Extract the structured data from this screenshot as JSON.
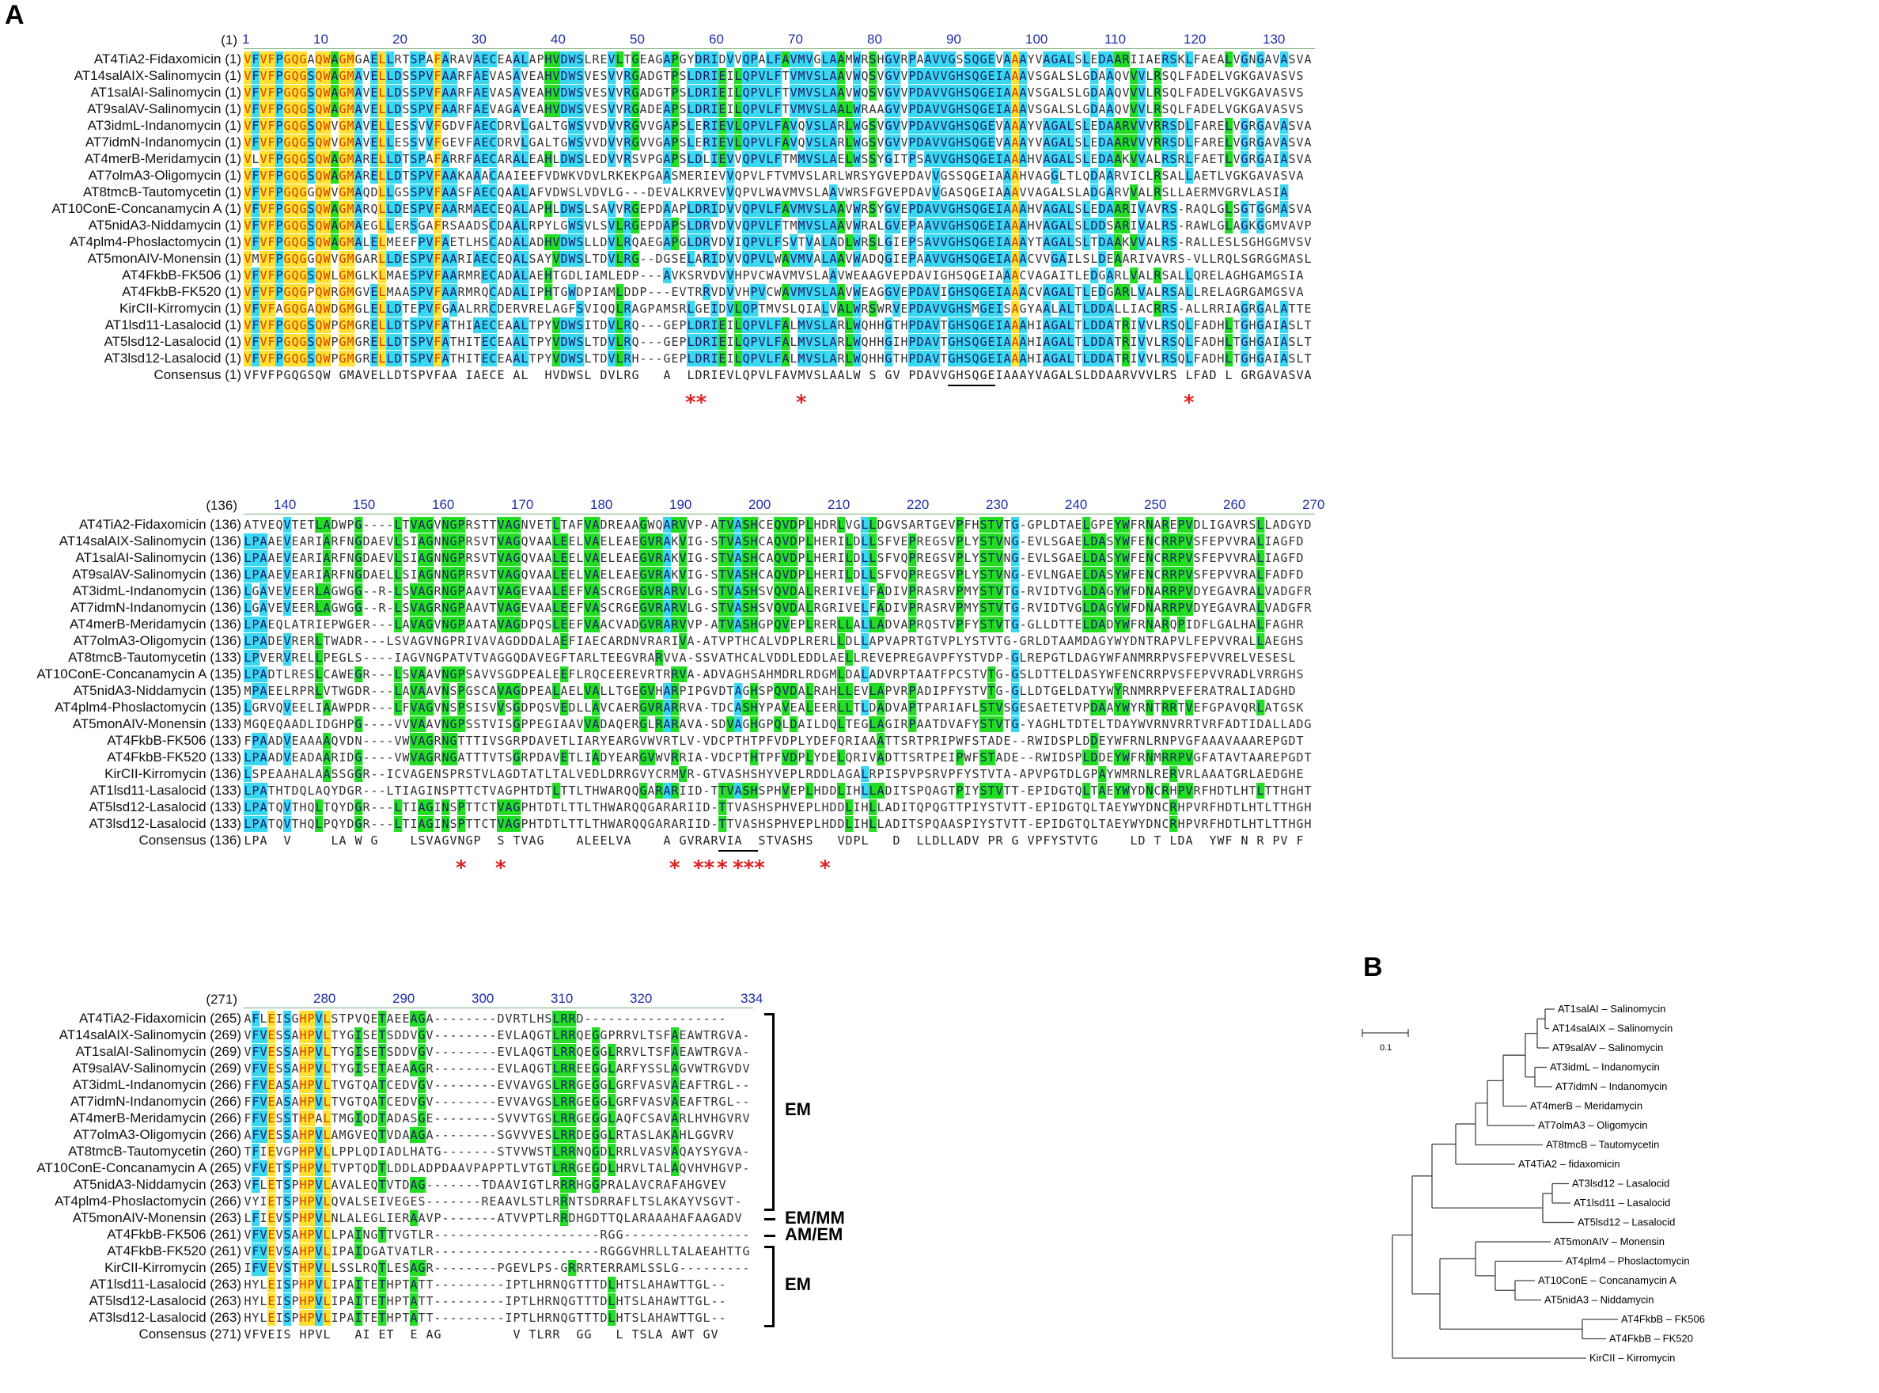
{
  "panels": {
    "a": "A",
    "b": "B"
  },
  "colors": {
    "identical": "#ffe033",
    "conserved": "#3ad8f0",
    "similar": "#22dd22",
    "highlight_text": "#d43c00",
    "ruler_text": "#1f2fa8",
    "star": "#e02020"
  },
  "block1": {
    "header_pos": "(1)",
    "ruler": [
      "1",
      "10",
      "20",
      "30",
      "40",
      "50",
      "60",
      "70",
      "80",
      "90",
      "100",
      "110",
      "120",
      "130"
    ],
    "rows": [
      {
        "name": "AT4TiA2-Fidaxomicin",
        "pos": "(1)",
        "seq": "VFVFPGQGAQWAGMGAELLRTSPAFARAVAECEAALAPHVDWSLREVLTGEAGAPGYDRIDVVQPALFAVMVGLAAMWRSHGVRPAAVVGSSQGEVAAAYVAGALSLEDAARIIAERSKLFAEALVGNGAVASVA"
      },
      {
        "name": "AT14salAIX-Salinomycin",
        "pos": "(1)",
        "seq": "VFVFPGQGSQWAGMAVELLDSSPVFAARFAEVASAVEAHVDWSVESVVRGADGTPSLDRIEILQPVLFTVMVSLAAVWQSVGVVPDAVVGHSQGEIAAAVSGALSLGDAAQVVVLRSQLFADELVGKGAVASVS"
      },
      {
        "name": "AT1salAI-Salinomycin",
        "pos": "(1)",
        "seq": "VFVFPGQGSQWAGMAVELLDSSPVFAARFAEVASAVEAHVDWSVESVVRGADGTPSLDRIEILQPVLFTVMVSLAAVWQSVGVVPDAVVGHSQGEIAAAVSGALSLGDAAQVVVLRSQLFADELVGKGAVASVS"
      },
      {
        "name": "AT9salAV-Salinomycin",
        "pos": "(1)",
        "seq": "VFVFPGQGSQWAGMAVELLDSSPVFAARFAEVAGAVEAHVDWSVESVVRGADEAPSLDRIEILQPVLFTVMVSLAALWRAAGVVPDAVVGHSQGEIAAAVSGALSLGDAAQVVVLRSQLFADELVGKGAVASVS"
      },
      {
        "name": "AT3idmL-Indanomycin",
        "pos": "(1)",
        "seq": "VFVFPGQGSQWVGMAVELLESSVVFGDVFAECDRVLGALTGWSVVDVVRGVVGAPSLERIEVLQPVLFAVQVSLARLWGSVGVVPDAVVGHSQGEVAAAYVAGALSLEDAARVVVRRSDLFARELVGRGAVASVA"
      },
      {
        "name": "AT7idmN-Indanomycin",
        "pos": "(1)",
        "seq": "VFVFPGQGSQWVGMAVELLESSVVFGEVFAECDRVLGALTGWSVVDVVRGVVGAPSLERIEVLQPVLFAVQVSLARLWGSVGVVPDAVVGHSQGEVAAAYVAGALSLEDAARVVVRRSDLFARELVGRGAVASVA"
      },
      {
        "name": "AT4merB-Meridamycin",
        "pos": "(1)",
        "seq": "VLVFPGQGSQWAGMARELLDTSPAFARRFAECARALEAHLDWSLEDVVRSVPGAPSLDLIEVVQPVLFTMMVSLAELWSSYGITPSAVVGHSQGEIAAAHVAGALSLEDAAKVVALRSRLFAETLVGRGAIASVA"
      },
      {
        "name": "AT7olmA3-Oligomycin",
        "pos": "(1)",
        "seq": "VFVFPGQGSQWAGMARELLDTSPVFAAKAAACAAIEEFVDWKVDVLRKEKPGAASMERIEVVQPVLFTVMVSLARLWRSYGVEPDAVVGSSQGEIAAAHVAGGLTLQDAARVICLRSALLAETLVGKGAVASVA"
      },
      {
        "name": "AT8tmcB-Tautomycetin",
        "pos": "(1)",
        "seq": "VFVFPGQGGQWVGMAQDLLGSSPVFAASFAECQAALAFVDWSLVDVLG---DEVALKRVEVVQPVLWAVMVSLAAVWRSFGVEPDAVVGASQGEIAAAVVAGALSLADGARVVALRSLLAERMVGRVLASIA"
      },
      {
        "name": "AT10ConE-Concanamycin A",
        "pos": "(1)",
        "seq": "VFVFPGQGSQWAGMARQLLDESPVFAARMAECEQALAPHLDWSLSAVVRGEPDAAPLDRIDVVQPVLFAVMVSLAAVWRSYGVEPDAVVGHSQGEIAAAHVAGALSLEDAARIVAVRS-RAQLGLSGTGGMASVA"
      },
      {
        "name": "AT5nidA3-Niddamycin",
        "pos": "(1)",
        "seq": "VFVFPGQGSQWAGMAEGLLERSGAFRSAADSCDAALRPYLGWSVLSVLRGEPDAPSLDRVDVVQPVLFTMMVSLAAVWRALGVEPAAVVGHSQGEIAAAHVAGALSLDDSARIVALRS-RAWLGLAGKGGMVAVP"
      },
      {
        "name": "AT4plm4-Phoslactomycin",
        "pos": "(1)",
        "seq": "VFVFPGQGSQWAGMALELMEEFPVFAETLHSCADALADHVDWSLLDVLRQAEGAPGLDRVDVIQPVLFSVTVALADLWRSLGIEPSAVVGHSQGEIAAAYTAGALSLTDAAKVVALRS-RALLESLSGHGGMVSVP"
      },
      {
        "name": "AT5monAIV-Monensin",
        "pos": "(1)",
        "seq": "VMVFPGQGGQWVGMGARLLDESPVFAARIAECEQALSAYVDWSLTDVLRG--DGSELARIDVVQPVLWAVMVALAAVWADQGIEPAAVVGHSQGEIAAACVVGAILSLDEAARIVAVRS-VLLRQLSGRGGMASLG"
      },
      {
        "name": "AT4FkbB-FK506",
        "pos": "(1)",
        "seq": "VFVFPGQGSQWLGMGLKLMAESPVFAARMRECADALAEHTGDLIAMLEDP---AVKSRVDVVHPVCWAVMVSLAAVWEAAGVEPDAVIGHSQGEIAAACVAGAITLEDGARLVALRSALLQRELAGHGAMGSIA"
      },
      {
        "name": "AT4FkbB-FK520",
        "pos": "(1)",
        "seq": "VFVFPGQGPQWRGMGVELMAASPVFAARMRQCADALIPHTGWDPIAMLDDP---EVTRRVDVVHPVCWAVMVSLAAVWEAGGVEPDAVIGHSQGEIAAACVAGALTLEDGARLVALRSALLRELAGRGAMGSVA"
      },
      {
        "name": "KirCII-Kirromycin",
        "pos": "(1)",
        "seq": "VFVFAGQGAQWDGMGLELLDTEPVFGAALRRCDERVRELAGFSVIQQLRAGPAMSRLGEIDVLQPTMVSLQIALVALWRSWRVEPDAVVGHSMGEISAGYAALALTLDDALLIACRRS-ALLRRIAGRGALATTE"
      },
      {
        "name": "AT1lsd11-Lasalocid",
        "pos": "(1)",
        "seq": "VFVFPGQGSQWPGMGRELLDTSPVFATHIAECEAALTPYVDWSITDVLRQ---GEPLDRIEILQPVLFALMVSLARLWQHHGTHPDAVTGHSQGEIAAAHIAGALTLDDATRIVVLRSQLFADHLTGHGAIASLT"
      },
      {
        "name": "AT5lsd12-Lasalocid",
        "pos": "(1)",
        "seq": "VFVFPGQGSQWPGMGRELLDTSPVFATHITECEAALTPYVDWSLTDVLRQ---GEPLDRIEILQPVLFALMVSLARLWQHHGIHPDAVTGHSQGEIAAAHIAGALTLDDATRIVVLRSQLFADHLTGHGAIASLT"
      },
      {
        "name": "AT3lsd12-Lasalocid",
        "pos": "(1)",
        "seq": "VFVFPGQGSQWPGMGRELLDTSPVFATHITECEAALTPYVDWSLTDVLRH---GEPLDRIEILQPVLFALMVSLARLWQHHGTHPDAVTGHSQGEIAAAHIAGALTLDDATRIVVLRSQLFADHLTGHGAIASLT"
      }
    ],
    "consensus_name": "Consensus",
    "consensus_pos": "(1)",
    "consensus": "VFVFPGQGSQW GMAVELLDTSPVFAA IAECE AL  HVDWSL DVLRG   A  LDRIEVLQPVLFAVMVSLAALW S GV PDAVVGHSQGEIAAAYVAGALSLDDAARVVVLRS LFAD L GRGAVASVA",
    "stars": [
      {
        "col": 57,
        "t": "**"
      },
      {
        "col": 71,
        "t": "*"
      },
      {
        "col": 120,
        "t": "*"
      }
    ],
    "underline": [
      90,
      96
    ]
  },
  "block2": {
    "header_pos": "(136)",
    "ruler": [
      "140",
      "150",
      "160",
      "170",
      "180",
      "190",
      "200",
      "210",
      "220",
      "230",
      "240",
      "250",
      "260",
      "270"
    ],
    "rows": [
      {
        "name": "AT4TiA2-Fidaxomicin",
        "pos": "(136)",
        "seq": "ATVEQVTETLADWPG----LTVAGVNGPRSTTVAGNVETLTAFVADREAAGWQARVVP-ATVASHCEQVDPLHDRLVGLLDGVSARTGEVPFHSTVTG-GPLDTAELGPEYWFRNAREPVDLIGAVRSLLADGYD"
      },
      {
        "name": "AT14salAIX-Salinomycin",
        "pos": "(136)",
        "seq": "LPAAEVEARIARFNGDAEVLSIAGNNGPRSVTVAGQVAALEELVAELEAEGVRAKVIG-STVASHCAQVDPLHERILDLLSFVEPREGSVPLYSTVNG-EVLSGAELDASYWFENCRRPVSFEPVVRALIAGFD"
      },
      {
        "name": "AT1salAI-Salinomycin",
        "pos": "(136)",
        "seq": "LPAAEVEARIARFNGDAEVLSIAGNNGPRSVTVAGQVAALEELVAELEAEGVRAKVIG-STVASHCAQVDPLHERILDLLSFVQPREGSVPLYSTVNG-EVLSGAELDASYWFENCRRPVSFEPVVRALIAGFD"
      },
      {
        "name": "AT9salAV-Salinomycin",
        "pos": "(136)",
        "seq": "LPAAEVEARIARFNGDAELLSIAGNNGPRSVTVAGQVAALEELVAELEAEGVRAKVIG-STVASHCAQVDPLHERILDLLSFVQPREGSVPLYSTVNG-EVLNGAELDASYWFENCRRPVSFEPVVRALFADFD"
      },
      {
        "name": "AT3idmL-Indanomycin",
        "pos": "(136)",
        "seq": "LGAVEVEERLAGWGG--R-LSVAGRNGPAAVTVAGEVAALEEFVASCRGEGVRARVLG-STVASHSVQVDALRERIVELFADIVPRASRVPMYSTVTG-RVIDTVGLDAGYWFDNARRPVDYEGAVRALVADGFR"
      },
      {
        "name": "AT7idmN-Indanomycin",
        "pos": "(136)",
        "seq": "LGAVEVEERLAGWGG--R-LSVAGRNGPAAVTVAGEVAALEEFVASCRGEGVRARVLG-STVASHSVQVDALRGRIVELFADIVPRASRVPMYSTVTG-RVIDTVGLDAGYWFDNARRPVDYEGAVRALVADGFR"
      },
      {
        "name": "AT4merB-Meridamycin",
        "pos": "(136)",
        "seq": "LPAEQLATRIEPWGER---LAVAGVNGPAATAVAGDPQSLEEFVAACVADGVRARVVP-ATVASHGPQVEPLRERLLALLADVAPRQSTVPFYSTVTG-GLLDTTELDADYWFRNARQPIDFLGALHALFAGHR"
      },
      {
        "name": "AT7olmA3-Oligomycin",
        "pos": "(136)",
        "seq": "LPADEVRERLTWADR---LSVAGVNGPRIVAVAGDDDALAEFIAECARDNVRARIVA-ATVPTHCALVDPLRERLLDLLAPVAPRTGTVPLYSTVTG-GRLDTAAMDAGYWYDNTRAPVLFEPVVRALLAEGHS"
      },
      {
        "name": "AT8tmcB-Tautomycetin",
        "pos": "(133)",
        "seq": "LPVERVRELLPEGLS----IAGVNGPATVTVAGGQDAVEGFTARLTEEGVRARVVA-SSVATHCALVDDLEDDLAELLREVEPREGAVPFYSTVDP-GLREPGTLDAGYWFANMRRPVSFEPVVRELVESESL"
      },
      {
        "name": "AT10ConE-Concanamycin A",
        "pos": "(135)",
        "seq": "LPADTLRESLCAWEGR---LSVAAVNGPSAVVSGDPEALEEFLRQCEEREVRTRRVA-ADVAGHSAHMDRLRDGMLDALADVRPTAATFPCSTVTG-GSLDTTELDASYWFENCRRPVSFEPVVRADLVRRGHS"
      },
      {
        "name": "AT5nidA3-Niddamycin",
        "pos": "(135)",
        "seq": "MPAEELRPRLVTWGDR---LAVAAVNSPGSCAVAGDPEALAELVALLTGEGVHARPIPGVDTAGHSPQVDALRAHLLEVLAPVRPADIPFYSTVTG-GLLDTGELDATYWYRNMRRPVEFERATRALIADGHD"
      },
      {
        "name": "AT4plm4-Phoslactomycin",
        "pos": "(135)",
        "seq": "LGRVQVEELIAAWPDR---LFVAGVNSPSISVVSGDPQSVEDLLAVCAERGVRARRVA-TDCASHYPAVEALEERLLTLDADVAPTPARIAFLSTVSGESAETETVPDAAYWYRNTRRTVEFGPAVQRLATGSK"
      },
      {
        "name": "AT5monAIV-Monensin",
        "pos": "(133)",
        "seq": "MGQEQAADLIDGHPG----VVVAAVNGPSSTVISGPPEGIAAVVADAQERGLRARAVA-SDVAGHGPQLDAILDQLTEGLAGIRPAATDVAFYSTVTG-YAGHLTDTELTDAYWVRNVRRTVRFADTIDALLADGYR"
      },
      {
        "name": "AT4FkbB-FK506",
        "pos": "(133)",
        "seq": "FPAADVEAAAAQVDN----VWVAGRNGTTTIVSGRPDAVETLIARYEARGVWVRTLV-VDCPTHTPFVDPLYDEFQRIAAATTSRTPRIPWFSTADE--RWIDSPLDDEYWFRNLRNPVGFAAAVAAAREPGDT"
      },
      {
        "name": "AT4FkbB-FK520",
        "pos": "(133)",
        "seq": "LPAADVEADAARIDG----VWVAGRNGATTTVTSGRPDAVETLIADYEARGVWVRRIA-VDCPTHTPFVDPLYDELQRIVADTTSRTPEIPWFSTADE--RWIDSPLDDEYWFRNMRRPVGFATAVTAAREPGDT"
      },
      {
        "name": "KirCII-Kirromycin",
        "pos": "(136)",
        "seq": "LSPEAAHALAASSGGR--ICVAGENSPRSTVLAGDTATLTALVEDLDRRGVYCRMVR-GTVASHSHYVEPLRDDLAGALRPISPVPSRVPFYSTVTA-APVPGTDLGPAYWMRNLRERVRLAAATGRLAEDGHE"
      },
      {
        "name": "AT1lsd11-Lasalocid",
        "pos": "(133)",
        "seq": "LPATHTDQLAQYDGR---LTIAGINSPTTCTVAGPHTDTLTTLTHWARQQGARARIID-TTVASHSPHVEPLHDDLIHLLADITSPQAGTPIYSTVTT-EPIDGTQLTAEYWYDNCRHPVRFHDTLHTLTTHGHT"
      },
      {
        "name": "AT5lsd12-Lasalocid",
        "pos": "(133)",
        "seq": "LPATQVTHQLTQYDGR---LTIAGINSPTTCTVAGPHTDTLTTLTHWARQQGARARIID-TTVASHSPHVEPLHDDLIHLLADITQPQGTTPIYSTVTT-EPIDGTQLTAEYWYDNCRHPVRFHDTLHTLTTHGHT"
      },
      {
        "name": "AT3lsd12-Lasalocid",
        "pos": "(133)",
        "seq": "LPATQVTHQLPQYDGR---LTIAGINSPTTCTVAGPHTDTLTTLTHWARQQGARARIID-TTVASHSPHVEPLHDDLIHLLADITSPQAASPIYSTVTT-EPIDGTQLTAEYWYDNCRHPVRFHDTLHTLTTHGHT"
      }
    ],
    "consensus_name": "Consensus",
    "consensus_pos": "(136)",
    "consensus": "LPA  V     LA W G    LSVAGVNGP  S TVAG    ALEELVA    A GVRARVIA  STVASHS   VDPL   D  LLDLLADV PR G VPFYSTVTG    LD T LDA  YWF N R PV F   AVRALVADGH",
    "stars": [
      {
        "col": 163,
        "t": "*"
      },
      {
        "col": 168,
        "t": "*"
      },
      {
        "col": 190,
        "t": "*"
      },
      {
        "col": 193,
        "t": "**"
      },
      {
        "col": 196,
        "t": "*"
      },
      {
        "col": 198,
        "t": "***"
      },
      {
        "col": 209,
        "t": "*"
      }
    ],
    "underline": [
      196,
      201
    ]
  },
  "block3": {
    "header_pos": "(271)",
    "ruler": [
      "280",
      "290",
      "300",
      "310",
      "320",
      "334"
    ],
    "rows": [
      {
        "name": "AT4TiA2-Fidaxomicin",
        "pos": "(265)",
        "seq": "AFLEISGHPVLSTPVQETAEEAGA--------DVRTLHSLRRD------------------"
      },
      {
        "name": "AT14salAIX-Salinomycin",
        "pos": "(269)",
        "seq": "VFVESSAHPVLTYGISETSDDVGV--------EVLAQGTLRRQEGGPRRVLTSFAEAWTRGVA-"
      },
      {
        "name": "AT1salAI-Salinomycin",
        "pos": "(269)",
        "seq": "VFVESSAHPVLTYGISETSDDVGV--------EVLAQGTLRRQEGGLRRVLTSFAEAWTRGVA-"
      },
      {
        "name": "AT9salAV-Salinomycin",
        "pos": "(269)",
        "seq": "VFVESSAHPVLTYGISETAEAAGR--------EVLAQGTLRREEGGLARFYSSLAGVWTRGVDV"
      },
      {
        "name": "AT3idmL-Indanomycin",
        "pos": "(266)",
        "seq": "FFVEASAHPVLTVGTQATCEDVGV--------EVVAVGSLRRGEGGLGRFVASVAEAFTRGL--"
      },
      {
        "name": "AT7idmN-Indanomycin",
        "pos": "(266)",
        "seq": "FFVEASAHPVLTVGTQATCEDVGV--------EVVAVGSLRRGEGGLGRFVASVAEAFTRGL--"
      },
      {
        "name": "AT4merB-Meridamycin",
        "pos": "(266)",
        "seq": "FFVESSTHPALTMGIQDTADASGE--------SVVVTGSLRRGEGGLAQFCSAVARLHVHGVRV"
      },
      {
        "name": "AT7olmA3-Oligomycin",
        "pos": "(266)",
        "seq": "AFVESSAHPVLAMGVEQTVDAAGA--------SGVVVESLRRDEGGLRTASLAKAHLGGVRV"
      },
      {
        "name": "AT8tmcB-Tautomycetin",
        "pos": "(260)",
        "seq": "TFIEVGPHPVLLPPLQDIADLHATG-------STVVWSTLRRNQGDLRRLVASVAQAYSYGVA-"
      },
      {
        "name": "AT10ConE-Concanamycin A",
        "pos": "(265)",
        "seq": "VFVETSPHPVLTVPTQDTLDDLADPDAAVPAPPTLVTGTLRRGEGDLHRVLTALAQVHVHGVP-"
      },
      {
        "name": "AT5nidA3-Niddamycin",
        "pos": "(263)",
        "seq": "VFLETSPHPVLAVALEQTVTDAG-------TDAAVIGTLRRRHGGPRALAVCRAFAHGVEV"
      },
      {
        "name": "AT4plm4-Phoslactomycin",
        "pos": "(266)",
        "seq": "VYIETSPHPVLQVALSEIVEGES-------REAAVLSTLRRNTSDRRAFLTSLAKAYVSGVT-"
      },
      {
        "name": "AT5monAIV-Monensin",
        "pos": "(263)",
        "seq": "LFIEVSPHPVLNLALEGLIERAAVP-------ATVVPTLRRDHGDTTQLARAAAHAFAAGADV"
      },
      {
        "name": "AT4FkbB-FK506",
        "pos": "(261)",
        "seq": "VFVEVSAHPVLLPAINGTTVGTLR---------------------RGG----------------"
      },
      {
        "name": "AT4FkbB-FK520",
        "pos": "(261)",
        "seq": "VFVEVSAHPVLIPAIDGATVATLR---------------------RGGGVHRLLTALAEAHTTGVP-"
      },
      {
        "name": "KirCII-Kirromycin",
        "pos": "(265)",
        "seq": "IFVEVSTHPVLLSSLRQTLESAGR--------PGEVLPS-GRRRTERRAMLSSLG-----------"
      },
      {
        "name": "AT1lsd11-Lasalocid",
        "pos": "(263)",
        "seq": "HYLEISPHPVLIPAITETHPTATT---------IPTLHRNQGTTTDLHTSLAHAWTTGL--"
      },
      {
        "name": "AT5lsd12-Lasalocid",
        "pos": "(263)",
        "seq": "HYLEISPHPVLIPAITETHPTATT---------IPTLHRNQGTTTDLHTSLAHAWTTGL--"
      },
      {
        "name": "AT3lsd12-Lasalocid",
        "pos": "(263)",
        "seq": "HYLEISPHPVLIPAITETHPTATT---------IPTLHRNQGTTTDLHTSLAHAWTTGL--"
      }
    ],
    "consensus_name": "Consensus",
    "consensus_pos": "(271)",
    "consensus": "VFVEIS HPVL   AI ET  E AG         V TLRR  GG   L TSLA AWT GV",
    "groups": [
      {
        "label": "EM",
        "from": 0,
        "to": 11
      },
      {
        "label": "EM/MM",
        "from": 12,
        "to": 12
      },
      {
        "label": "AM/EM",
        "from": 13,
        "to": 13
      },
      {
        "label": "EM",
        "from": 14,
        "to": 18
      }
    ]
  },
  "tree": {
    "scale": "0.1",
    "leaves": [
      "AT1salAI – Salinomycin",
      "AT14salAIX – Salinomycin",
      "AT9salAV – Salinomycin",
      "AT3idmL – Indanomycin",
      "AT7idmN – Indanomycin",
      "AT4merB – Meridamycin",
      "AT7olmA3 – Oligomycin",
      "AT8tmcB – Tautomycetin",
      "AT4TiA2 – fidaxomicin",
      "AT3lsd12 – Lasalocid",
      "AT1lsd11 – Lasalocid",
      "AT5lsd12 – Lasalocid",
      "AT5monAIV – Monensin",
      "AT4plm4 – Phoslactomycin",
      "AT10ConE – Concanamycin  A",
      "AT5nidA3 – Niddamycin",
      "AT4FkbB – FK506",
      "AT4FkbB – FK520",
      "KirCII – Kirromycin"
    ]
  }
}
